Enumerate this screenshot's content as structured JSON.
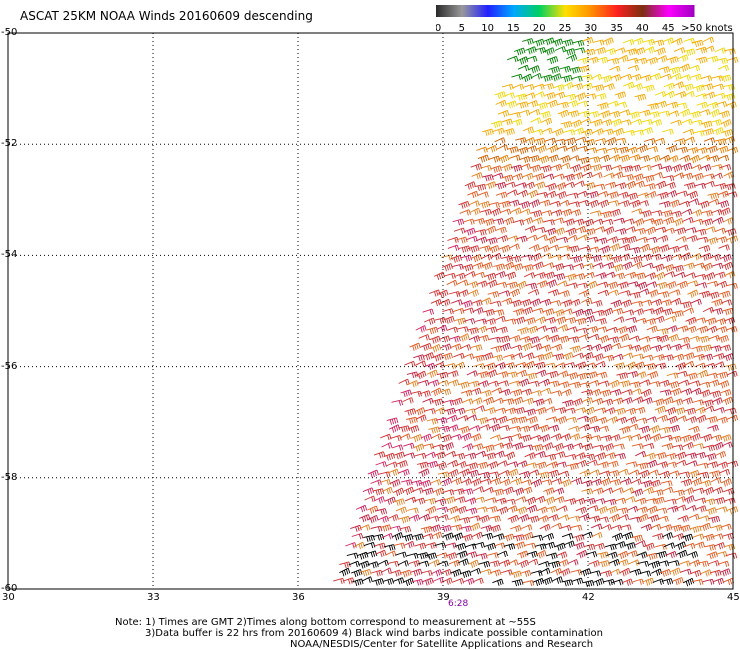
{
  "title": "ASCAT 25KM NOAA Winds 20160609 descending",
  "legend": {
    "labels": [
      "0",
      "5",
      "10",
      "15",
      "20",
      "25",
      "30",
      "35",
      "40",
      "45",
      ">50 knots"
    ],
    "colors": [
      "#3a3a3a",
      "#b4b4b4",
      "#0000ff",
      "#00a8ff",
      "#00d060",
      "#ffe000",
      "#ff8c00",
      "#ff2020",
      "#7a3010",
      "#ff00ff",
      "#7000c0"
    ]
  },
  "map": {
    "lon_ticks": [
      "30",
      "33",
      "36",
      "39",
      "42",
      "45"
    ],
    "lat_ticks": [
      "-50",
      "-52",
      "-54",
      "-56",
      "-58",
      "-60"
    ],
    "pass_time": "6:28",
    "pass_time_color": "#8000a0"
  },
  "note": {
    "line1": "Note: 1) Times are GMT 2)Times along bottom correspond to measurement at ~55S",
    "line2": "3)Data buffer is 22 hrs from 20160609 4) Black wind barbs indicate possible contamination",
    "line3": "NOAA/NESDIS/Center for Satellite Applications and Research"
  }
}
